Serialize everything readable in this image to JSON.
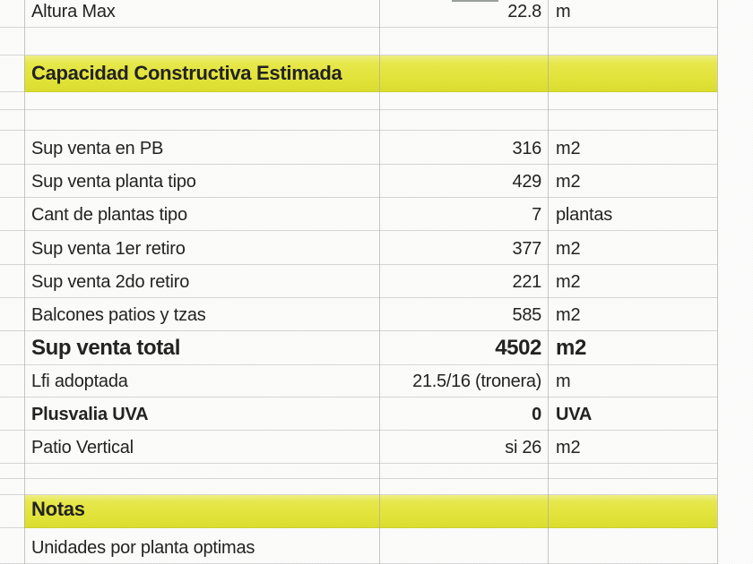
{
  "sheet": {
    "rows": [
      {
        "kind": "data",
        "label": "Altura Max",
        "value": "22.8",
        "unit": "m"
      },
      {
        "kind": "empty"
      },
      {
        "kind": "section",
        "label": "Capacidad Constructiva Estimada"
      },
      {
        "kind": "empty"
      },
      {
        "kind": "empty"
      },
      {
        "kind": "data",
        "label": "Sup venta en PB",
        "value": "316",
        "unit": "m2"
      },
      {
        "kind": "data",
        "label": "Sup venta planta tipo",
        "value": "429",
        "unit": "m2"
      },
      {
        "kind": "data",
        "label": "Cant de plantas tipo",
        "value": "7",
        "unit": "plantas"
      },
      {
        "kind": "data",
        "label": "Sup venta 1er retiro",
        "value": "377",
        "unit": "m2"
      },
      {
        "kind": "data",
        "label": "Sup venta 2do retiro",
        "value": "221",
        "unit": "m2"
      },
      {
        "kind": "data",
        "label": "Balcones patios y tzas",
        "value": "585",
        "unit": "m2"
      },
      {
        "kind": "data",
        "label": "Sup venta total",
        "value": "4502",
        "unit": "m2",
        "style": "total"
      },
      {
        "kind": "data",
        "label": "Lfi adoptada",
        "value": "21.5/16 (tronera)",
        "unit": "m"
      },
      {
        "kind": "data",
        "label": "Plusvalia UVA",
        "value": "0",
        "unit": "UVA",
        "style": "bold"
      },
      {
        "kind": "data",
        "label": "Patio Vertical",
        "value": "si 26",
        "unit": "m2"
      },
      {
        "kind": "empty"
      },
      {
        "kind": "empty"
      },
      {
        "kind": "section",
        "label": "Notas"
      },
      {
        "kind": "data",
        "label": "Unidades por planta optimas",
        "value": "",
        "unit": ""
      }
    ],
    "colors": {
      "section_bg": "#e5e63c",
      "grid": "#d7d7d7",
      "text": "#212121"
    }
  }
}
